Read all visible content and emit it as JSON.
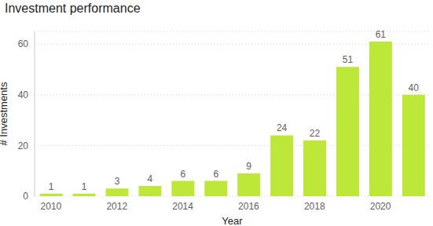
{
  "chart_data": {
    "type": "bar",
    "title": "Investment performance",
    "x_label": "Year",
    "y_label": "# Investments",
    "categories": [
      "2010",
      null,
      "2012",
      null,
      "2014",
      null,
      "2016",
      null,
      "2018",
      null,
      "2020",
      null
    ],
    "values": [
      1,
      1,
      3,
      4,
      6,
      6,
      9,
      24,
      22,
      51,
      61,
      40
    ],
    "color": "#bde83a",
    "ylim": [
      0,
      65
    ],
    "yticks": [
      0,
      20,
      40,
      60
    ],
    "grid": true,
    "data_labels": true
  }
}
